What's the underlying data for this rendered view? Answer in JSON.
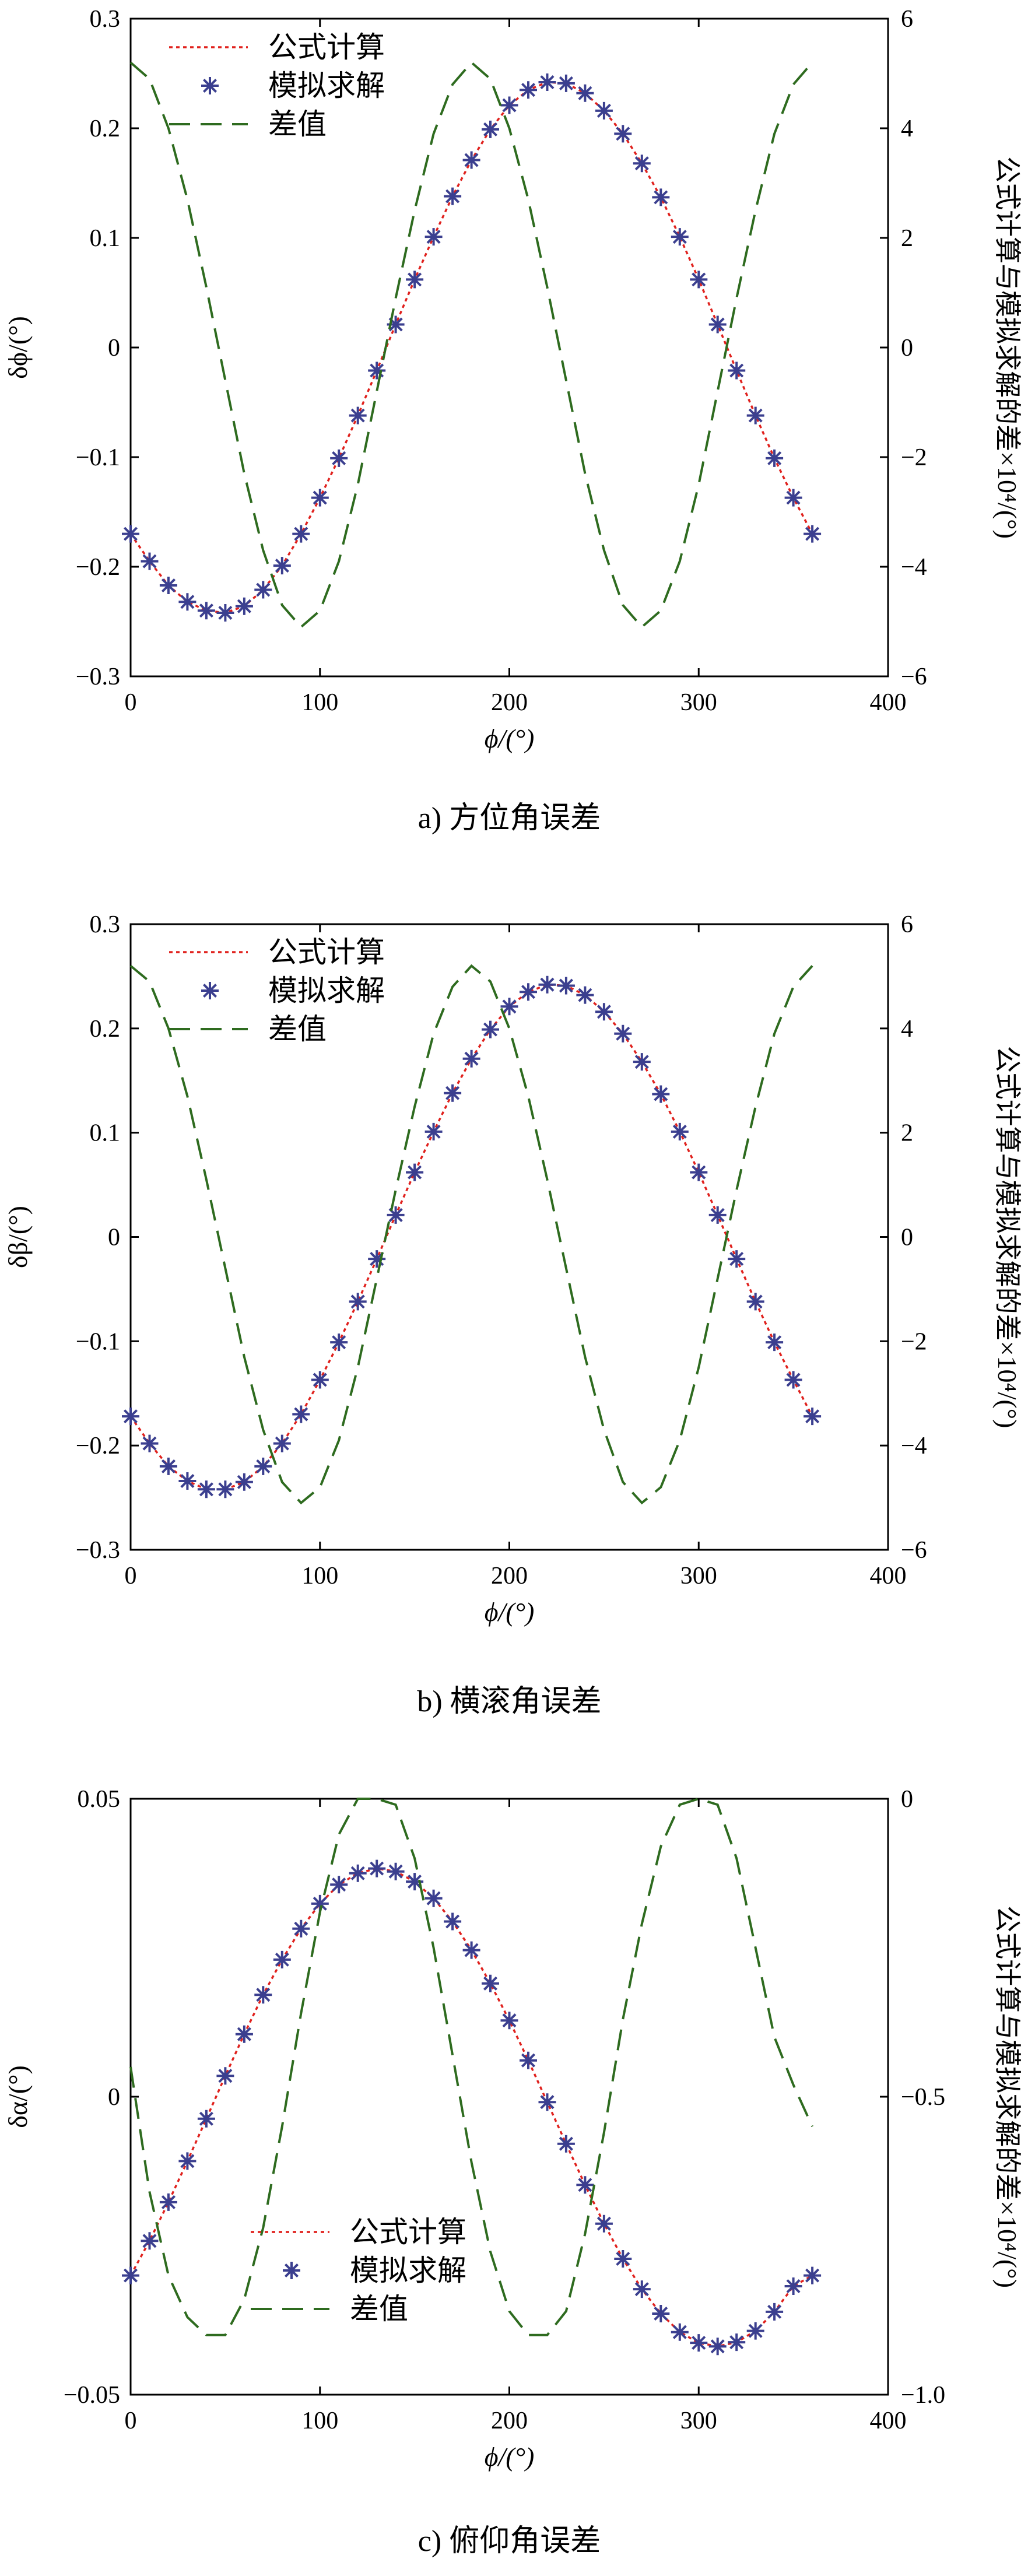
{
  "figure": {
    "legend_labels": {
      "formula": "公式计算",
      "simulation": "模拟求解",
      "difference": "差值"
    },
    "colors": {
      "formula": "#e0201c",
      "simulation": "#3b3f8f",
      "difference": "#2e6b1f",
      "axis": "#000000"
    }
  },
  "chart_data": [
    {
      "id": "a",
      "type": "line",
      "caption": "a) 方位角误差",
      "xlabel": "ϕ/(°)",
      "ylabel_left": "δϕ/(°)",
      "ylabel_right": "公式计算与模拟求解的差×10⁴/(°)",
      "xlim": [
        0,
        400
      ],
      "x_ticks": [
        "0",
        "100",
        "200",
        "300",
        "400"
      ],
      "ylim_left": [
        -0.3,
        0.3
      ],
      "y_ticks_left": [
        "−0.3",
        "−0.2",
        "−0.1",
        "0",
        "0.1",
        "0.2",
        "0.3"
      ],
      "ylim_right": [
        -6,
        6
      ],
      "y_ticks_right": [
        "−6",
        "−4",
        "−2",
        "0",
        "2",
        "4",
        "6"
      ],
      "legend_position": "top-left",
      "x": [
        0,
        10,
        20,
        30,
        40,
        50,
        60,
        70,
        80,
        90,
        100,
        110,
        120,
        130,
        140,
        150,
        160,
        170,
        180,
        190,
        200,
        210,
        220,
        230,
        240,
        250,
        260,
        270,
        280,
        290,
        300,
        310,
        320,
        330,
        340,
        350,
        360
      ],
      "series": [
        {
          "name": "公式计算",
          "axis": "left",
          "style": "dotted-line",
          "values": [
            -0.17,
            -0.195,
            -0.217,
            -0.232,
            -0.24,
            -0.242,
            -0.236,
            -0.221,
            -0.199,
            -0.17,
            -0.137,
            -0.101,
            -0.062,
            -0.021,
            0.021,
            0.062,
            0.101,
            0.138,
            0.171,
            0.199,
            0.221,
            0.235,
            0.242,
            0.241,
            0.232,
            0.216,
            0.195,
            0.168,
            0.137,
            0.101,
            0.062,
            0.021,
            -0.021,
            -0.062,
            -0.101,
            -0.137,
            -0.17
          ]
        },
        {
          "name": "模拟求解",
          "axis": "left",
          "style": "star-markers",
          "values": [
            -0.17,
            -0.195,
            -0.217,
            -0.232,
            -0.24,
            -0.242,
            -0.236,
            -0.221,
            -0.199,
            -0.17,
            -0.137,
            -0.101,
            -0.062,
            -0.021,
            0.021,
            0.062,
            0.101,
            0.138,
            0.171,
            0.199,
            0.221,
            0.235,
            0.242,
            0.241,
            0.232,
            0.216,
            0.195,
            0.168,
            0.137,
            0.101,
            0.062,
            0.021,
            -0.021,
            -0.062,
            -0.101,
            -0.137,
            -0.17
          ]
        },
        {
          "name": "差值",
          "axis": "right",
          "style": "dashed-line",
          "values": [
            5.2,
            4.9,
            4.0,
            2.7,
            1.1,
            -0.6,
            -2.3,
            -3.7,
            -4.7,
            -5.1,
            -4.8,
            -3.9,
            -2.5,
            -0.8,
            0.9,
            2.5,
            3.9,
            4.8,
            5.2,
            4.9,
            4.0,
            2.7,
            1.1,
            -0.6,
            -2.3,
            -3.7,
            -4.7,
            -5.1,
            -4.8,
            -3.9,
            -2.5,
            -0.8,
            0.9,
            2.5,
            3.9,
            4.8,
            5.2
          ]
        }
      ]
    },
    {
      "id": "b",
      "type": "line",
      "caption": "b) 横滚角误差",
      "xlabel": "ϕ/(°)",
      "ylabel_left": "δβ/(°)",
      "ylabel_right": "公式计算与模拟求解的差×10⁴/(°)",
      "xlim": [
        0,
        400
      ],
      "x_ticks": [
        "0",
        "100",
        "200",
        "300",
        "400"
      ],
      "ylim_left": [
        -0.3,
        0.3
      ],
      "y_ticks_left": [
        "−0.3",
        "−0.2",
        "−0.1",
        "0",
        "0.1",
        "0.2",
        "0.3"
      ],
      "ylim_right": [
        -6,
        6
      ],
      "y_ticks_right": [
        "−6",
        "−4",
        "−2",
        "0",
        "2",
        "4",
        "6"
      ],
      "legend_position": "top-left",
      "x": [
        0,
        10,
        20,
        30,
        40,
        50,
        60,
        70,
        80,
        90,
        100,
        110,
        120,
        130,
        140,
        150,
        160,
        170,
        180,
        190,
        200,
        210,
        220,
        230,
        240,
        250,
        260,
        270,
        280,
        290,
        300,
        310,
        320,
        330,
        340,
        350,
        360
      ],
      "series": [
        {
          "name": "公式计算",
          "axis": "left",
          "style": "dotted-line",
          "values": [
            -0.172,
            -0.198,
            -0.22,
            -0.234,
            -0.242,
            -0.242,
            -0.235,
            -0.22,
            -0.198,
            -0.17,
            -0.137,
            -0.101,
            -0.062,
            -0.021,
            0.021,
            0.062,
            0.101,
            0.138,
            0.171,
            0.199,
            0.221,
            0.235,
            0.242,
            0.241,
            0.232,
            0.216,
            0.195,
            0.168,
            0.137,
            0.101,
            0.062,
            0.021,
            -0.021,
            -0.062,
            -0.101,
            -0.137,
            -0.172
          ]
        },
        {
          "name": "模拟求解",
          "axis": "left",
          "style": "star-markers",
          "values": [
            -0.172,
            -0.198,
            -0.22,
            -0.234,
            -0.242,
            -0.242,
            -0.235,
            -0.22,
            -0.198,
            -0.17,
            -0.137,
            -0.101,
            -0.062,
            -0.021,
            0.021,
            0.062,
            0.101,
            0.138,
            0.171,
            0.199,
            0.221,
            0.235,
            0.242,
            0.241,
            0.232,
            0.216,
            0.195,
            0.168,
            0.137,
            0.101,
            0.062,
            0.021,
            -0.021,
            -0.062,
            -0.101,
            -0.137,
            -0.172
          ]
        },
        {
          "name": "差值",
          "axis": "right",
          "style": "dashed-line",
          "values": [
            5.2,
            4.9,
            4.0,
            2.7,
            1.1,
            -0.6,
            -2.3,
            -3.7,
            -4.7,
            -5.1,
            -4.8,
            -3.9,
            -2.5,
            -0.8,
            0.9,
            2.5,
            3.9,
            4.8,
            5.2,
            4.9,
            4.0,
            2.7,
            1.1,
            -0.6,
            -2.3,
            -3.7,
            -4.7,
            -5.1,
            -4.8,
            -3.9,
            -2.5,
            -0.8,
            0.9,
            2.5,
            3.9,
            4.8,
            5.2
          ]
        }
      ]
    },
    {
      "id": "c",
      "type": "line",
      "caption": "c) 俯仰角误差",
      "xlabel": "ϕ/(°)",
      "ylabel_left": "δα/(°)",
      "ylabel_right": "公式计算与模拟求解的差×10⁴/(°)",
      "xlim": [
        0,
        400
      ],
      "x_ticks": [
        "0",
        "100",
        "200",
        "300",
        "400"
      ],
      "ylim_left": [
        -0.05,
        0.05
      ],
      "y_ticks_left": [
        "−0.05",
        "0",
        "0.05"
      ],
      "ylim_right": [
        -1.0,
        0
      ],
      "y_ticks_right": [
        "−1.0",
        "−0.5",
        "0"
      ],
      "legend_position": "bottom-left",
      "x": [
        0,
        10,
        20,
        30,
        40,
        50,
        60,
        70,
        80,
        90,
        100,
        110,
        120,
        130,
        140,
        150,
        160,
        170,
        180,
        190,
        200,
        210,
        220,
        230,
        240,
        250,
        260,
        270,
        280,
        290,
        300,
        310,
        320,
        330,
        340,
        350,
        360
      ],
      "series": [
        {
          "name": "公式计算",
          "axis": "left",
          "style": "dotted-line",
          "values": [
            -0.03,
            -0.0242,
            -0.0177,
            -0.0108,
            -0.0037,
            0.0035,
            0.0105,
            0.0171,
            0.023,
            0.0282,
            0.0324,
            0.0356,
            0.0375,
            0.0383,
            0.0378,
            0.0361,
            0.0333,
            0.0294,
            0.0246,
            0.019,
            0.0128,
            0.0061,
            -0.0009,
            -0.0079,
            -0.0148,
            -0.0213,
            -0.0272,
            -0.0323,
            -0.0364,
            -0.0395,
            -0.0413,
            -0.0419,
            -0.0412,
            -0.0393,
            -0.0361,
            -0.0318,
            -0.03
          ]
        },
        {
          "name": "模拟求解",
          "axis": "left",
          "style": "star-markers",
          "values": [
            -0.03,
            -0.0242,
            -0.0177,
            -0.0108,
            -0.0037,
            0.0035,
            0.0105,
            0.0171,
            0.023,
            0.0282,
            0.0324,
            0.0356,
            0.0375,
            0.0383,
            0.0378,
            0.0361,
            0.0333,
            0.0294,
            0.0246,
            0.019,
            0.0128,
            0.0061,
            -0.0009,
            -0.0079,
            -0.0148,
            -0.0213,
            -0.0272,
            -0.0323,
            -0.0364,
            -0.0395,
            -0.0413,
            -0.0419,
            -0.0412,
            -0.0393,
            -0.0361,
            -0.0318,
            -0.03
          ]
        },
        {
          "name": "差值",
          "axis": "right",
          "style": "dashed-line",
          "values": [
            -0.45,
            -0.66,
            -0.8,
            -0.87,
            -0.9,
            -0.9,
            -0.84,
            -0.72,
            -0.55,
            -0.36,
            -0.19,
            -0.06,
            0,
            0,
            -0.01,
            -0.1,
            -0.25,
            -0.43,
            -0.61,
            -0.76,
            -0.86,
            -0.9,
            -0.9,
            -0.86,
            -0.73,
            -0.56,
            -0.37,
            -0.21,
            -0.08,
            -0.01,
            0,
            -0.01,
            -0.1,
            -0.25,
            -0.4,
            -0.48,
            -0.55
          ]
        }
      ]
    }
  ]
}
